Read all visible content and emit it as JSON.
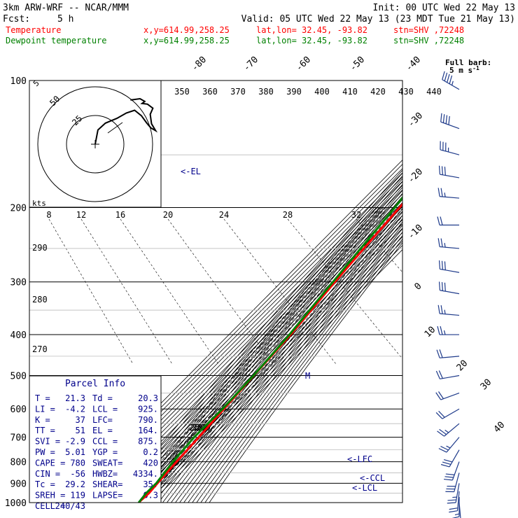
{
  "header": {
    "model": "3km ARW-WRF -- NCAR/MMM",
    "init": "Init: 00 UTC Wed 22 May 13",
    "fcst_label": "Fcst:",
    "fcst_value": "5 h",
    "valid": "Valid: 05 UTC Wed 22 May 13 (23 MDT Tue 21 May 13)",
    "line1_name": "Temperature",
    "line2_name": "Dewpoint temperature",
    "xy": "x,y=614.99,258.25",
    "latlon": "lat,lon= 32.45, -93.82",
    "stn": "stn=SHV ,72248",
    "temp_color": "#ff0000",
    "dew_color": "#008000"
  },
  "barb_legend": {
    "title": "Full barb:",
    "value": "5 m s",
    "sup": "-1"
  },
  "hodograph": {
    "ring_labels": [
      "50",
      "25"
    ],
    "kts": "kts",
    "speed_ticks": [
      "8",
      "12",
      "16",
      "20",
      "24",
      "28",
      "32"
    ],
    "speed_ticks_y": [
      306,
      306,
      306,
      306,
      306,
      306,
      306
    ]
  },
  "parcel": {
    "title": "Parcel Info",
    "rows": [
      [
        "T  =",
        "21.3",
        "Td =",
        "20.3"
      ],
      [
        "LI =",
        "-4.2",
        "LCL =",
        "925."
      ],
      [
        "K  =",
        "37",
        "LFC=",
        "790."
      ],
      [
        "TT =",
        "51",
        "EL =",
        "164."
      ],
      [
        "SVI =",
        "-2.9",
        "CCL =",
        "875."
      ],
      [
        "PW =",
        "5.01",
        "YGP =",
        "0.2"
      ],
      [
        "CAPE =",
        "780",
        "SWEAT=",
        "420"
      ],
      [
        "CIN =",
        "-56",
        "HWBZ=",
        "4334."
      ],
      [
        "Tc =",
        "29.2",
        "SHEAR=",
        "35."
      ],
      [
        "SREH =",
        "119",
        "LAPSE=",
        "6.3"
      ],
      [
        "CELL =",
        "240/43",
        "",
        ""
      ]
    ]
  },
  "chart_data": {
    "type": "line",
    "pressure_levels": [
      100,
      200,
      300,
      400,
      500,
      600,
      700,
      800,
      900,
      1000
    ],
    "theta_labels": [
      "350",
      "360",
      "370",
      "380",
      "390",
      "400",
      "410",
      "420",
      "430",
      "440"
    ],
    "theta_left_labels": [
      "290",
      "280",
      "270"
    ],
    "isotherm_labels": [
      "-80",
      "-70",
      "-60",
      "-50",
      "-40",
      "-30",
      "-20",
      "-10",
      "0",
      "10",
      "20",
      "30",
      "40"
    ],
    "mixing_ratio_labels": [
      "2",
      "3",
      "5",
      "8",
      "12",
      "20"
    ],
    "annotations": [
      "<-EL",
      "<-LFC",
      "<-CCL",
      "<-LCL",
      "M"
    ],
    "series": [
      {
        "name": "Temperature",
        "color": "#ff0000",
        "points": [
          [
            100,
            -77.8
          ],
          [
            115,
            -67.9
          ],
          [
            135,
            -63.7
          ],
          [
            150,
            -66.1
          ],
          [
            175,
            -63.7
          ],
          [
            200,
            -55.4
          ],
          [
            250,
            -43.8
          ],
          [
            300,
            -33.6
          ],
          [
            350,
            -23.5
          ],
          [
            400,
            -14.4
          ],
          [
            500,
            -5.7
          ],
          [
            600,
            2.2
          ],
          [
            700,
            8.9
          ],
          [
            800,
            14.0
          ],
          [
            900,
            19.4
          ],
          [
            950,
            22.6
          ],
          [
            980,
            21.2
          ],
          [
            990,
            20.5
          ],
          [
            1000,
            21.3
          ]
        ]
      },
      {
        "name": "Dewpoint temperature",
        "color": "#008000",
        "points": [
          [
            100,
            -92.3
          ],
          [
            115,
            -87.0
          ],
          [
            140,
            -80.5
          ],
          [
            160,
            -80.9
          ],
          [
            180,
            -76.4
          ],
          [
            200,
            -66.7
          ],
          [
            250,
            -51.4
          ],
          [
            300,
            -38.3
          ],
          [
            350,
            -27.5
          ],
          [
            400,
            -17.5
          ],
          [
            500,
            -6.3
          ],
          [
            600,
            -1.3
          ],
          [
            700,
            -2.1
          ],
          [
            800,
            5.4
          ],
          [
            900,
            16.5
          ],
          [
            950,
            15.8
          ],
          [
            1000,
            20.3
          ]
        ]
      }
    ],
    "wind_barbs": [
      {
        "p": 105,
        "dir": 300,
        "kt": 45
      },
      {
        "p": 130,
        "dir": 290,
        "kt": 40
      },
      {
        "p": 150,
        "dir": 285,
        "kt": 35
      },
      {
        "p": 170,
        "dir": 280,
        "kt": 30
      },
      {
        "p": 190,
        "dir": 275,
        "kt": 25
      },
      {
        "p": 220,
        "dir": 270,
        "kt": 20
      },
      {
        "p": 250,
        "dir": 275,
        "kt": 25
      },
      {
        "p": 285,
        "dir": 280,
        "kt": 30
      },
      {
        "p": 320,
        "dir": 280,
        "kt": 30
      },
      {
        "p": 360,
        "dir": 275,
        "kt": 25
      },
      {
        "p": 400,
        "dir": 270,
        "kt": 25
      },
      {
        "p": 450,
        "dir": 265,
        "kt": 20
      },
      {
        "p": 500,
        "dir": 260,
        "kt": 20
      },
      {
        "p": 550,
        "dir": 250,
        "kt": 20
      },
      {
        "p": 600,
        "dir": 240,
        "kt": 20
      },
      {
        "p": 650,
        "dir": 230,
        "kt": 25
      },
      {
        "p": 700,
        "dir": 220,
        "kt": 25
      },
      {
        "p": 750,
        "dir": 210,
        "kt": 30
      },
      {
        "p": 800,
        "dir": 200,
        "kt": 30
      },
      {
        "p": 850,
        "dir": 195,
        "kt": 30
      },
      {
        "p": 900,
        "dir": 190,
        "kt": 25
      },
      {
        "p": 940,
        "dir": 185,
        "kt": 20
      },
      {
        "p": 970,
        "dir": 180,
        "kt": 15
      },
      {
        "p": 1000,
        "dir": 175,
        "kt": 10
      }
    ],
    "hodograph_trace": [
      [
        0,
        0
      ],
      [
        0.4,
        2.1
      ],
      [
        1.5,
        3.1
      ],
      [
        3.2,
        3.8
      ],
      [
        4.6,
        4.6
      ],
      [
        5.8,
        5.0
      ],
      [
        6.8,
        4.2
      ],
      [
        7.6,
        3.1
      ],
      [
        8.2,
        2.4
      ],
      [
        8.9,
        2.0
      ],
      [
        8.3,
        3.0
      ],
      [
        8.1,
        4.4
      ],
      [
        8.5,
        5.3
      ],
      [
        7.7,
        5.9
      ],
      [
        6.9,
        6.0
      ],
      [
        7.3,
        6.3
      ],
      [
        6.6,
        6.7
      ],
      [
        5.2,
        6.5
      ]
    ]
  }
}
